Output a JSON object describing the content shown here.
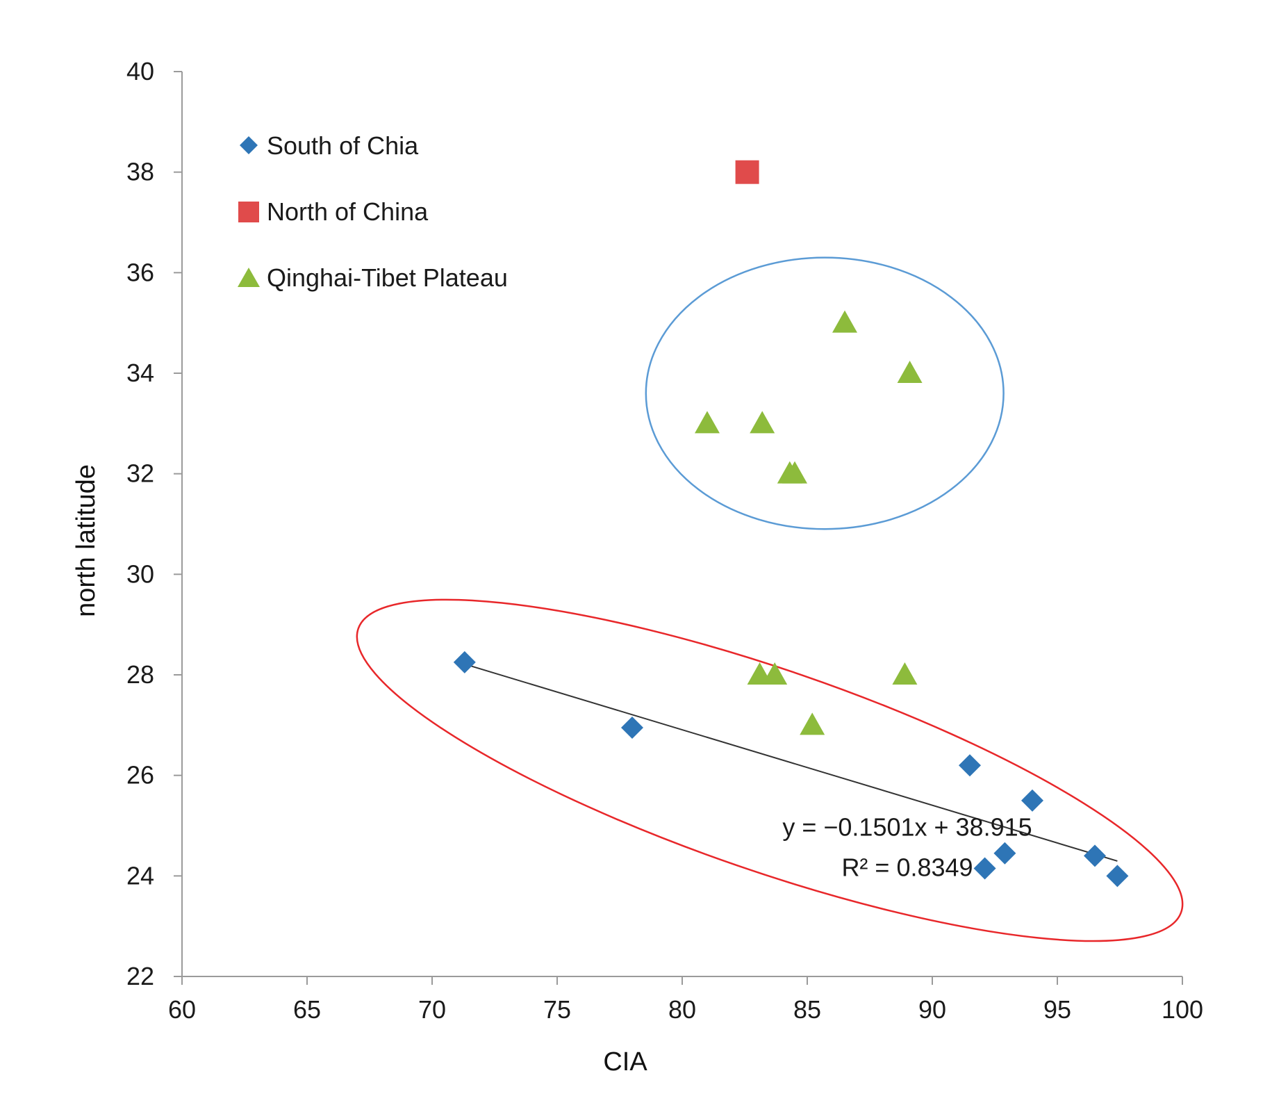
{
  "chart_data": {
    "type": "scatter",
    "title": "",
    "xlabel": "CIA",
    "ylabel": "north latitude",
    "xlim": [
      60,
      100
    ],
    "ylim": [
      22,
      40
    ],
    "xticks": [
      "60",
      "65",
      "70",
      "75",
      "80",
      "85",
      "90",
      "95",
      "100"
    ],
    "yticks": [
      "22",
      "24",
      "26",
      "28",
      "30",
      "32",
      "34",
      "36",
      "38",
      "40"
    ],
    "grid": false,
    "legend_position": "top-left",
    "series": [
      {
        "name": "South of Chia",
        "marker": "diamond",
        "color": "#2E75B6",
        "points": [
          {
            "x": 71.3,
            "y": 28.25
          },
          {
            "x": 78.0,
            "y": 26.95
          },
          {
            "x": 91.5,
            "y": 26.2
          },
          {
            "x": 94.0,
            "y": 25.5
          },
          {
            "x": 92.9,
            "y": 24.45
          },
          {
            "x": 92.1,
            "y": 24.15
          },
          {
            "x": 96.5,
            "y": 24.4
          },
          {
            "x": 97.4,
            "y": 24.0
          }
        ]
      },
      {
        "name": "North of China",
        "marker": "square",
        "color": "#E04B4B",
        "points": [
          {
            "x": 82.6,
            "y": 38.0
          }
        ]
      },
      {
        "name": "Qinghai-Tibet Plateau",
        "marker": "triangle",
        "color": "#8DBB3C",
        "points": [
          {
            "x": 86.5,
            "y": 35.0
          },
          {
            "x": 89.1,
            "y": 34.0
          },
          {
            "x": 81.0,
            "y": 33.0
          },
          {
            "x": 83.2,
            "y": 33.0
          },
          {
            "x": 84.3,
            "y": 32.0
          },
          {
            "x": 84.5,
            "y": 32.0
          },
          {
            "x": 83.1,
            "y": 28.0
          },
          {
            "x": 83.7,
            "y": 28.0
          },
          {
            "x": 88.9,
            "y": 28.0
          },
          {
            "x": 85.2,
            "y": 27.0
          }
        ]
      }
    ],
    "trendline": {
      "series": "South of Chia",
      "slope": -0.1501,
      "intercept": 38.915,
      "x_range": [
        71.3,
        97.4
      ],
      "color": "#333333"
    },
    "annotations": {
      "equation": "y = −0.1501x + 38.915",
      "r_squared": "R² = 0.8349",
      "equation_at": {
        "x": 89,
        "y": 24.8
      },
      "r_squared_at": {
        "x": 89,
        "y": 24.0
      }
    },
    "ellipses": [
      {
        "name": "blue-ellipse",
        "color": "#5B9BD5",
        "center": {
          "x": 85.7,
          "y": 33.6
        },
        "rx": 7.15,
        "ry": 2.7,
        "angle_deg": 0
      },
      {
        "name": "red-ellipse",
        "color": "#E8272A",
        "center": {
          "x": 83.5,
          "y": 26.1
        },
        "rx": 17.4,
        "ry": 2.0,
        "angle_deg": 19
      }
    ]
  }
}
